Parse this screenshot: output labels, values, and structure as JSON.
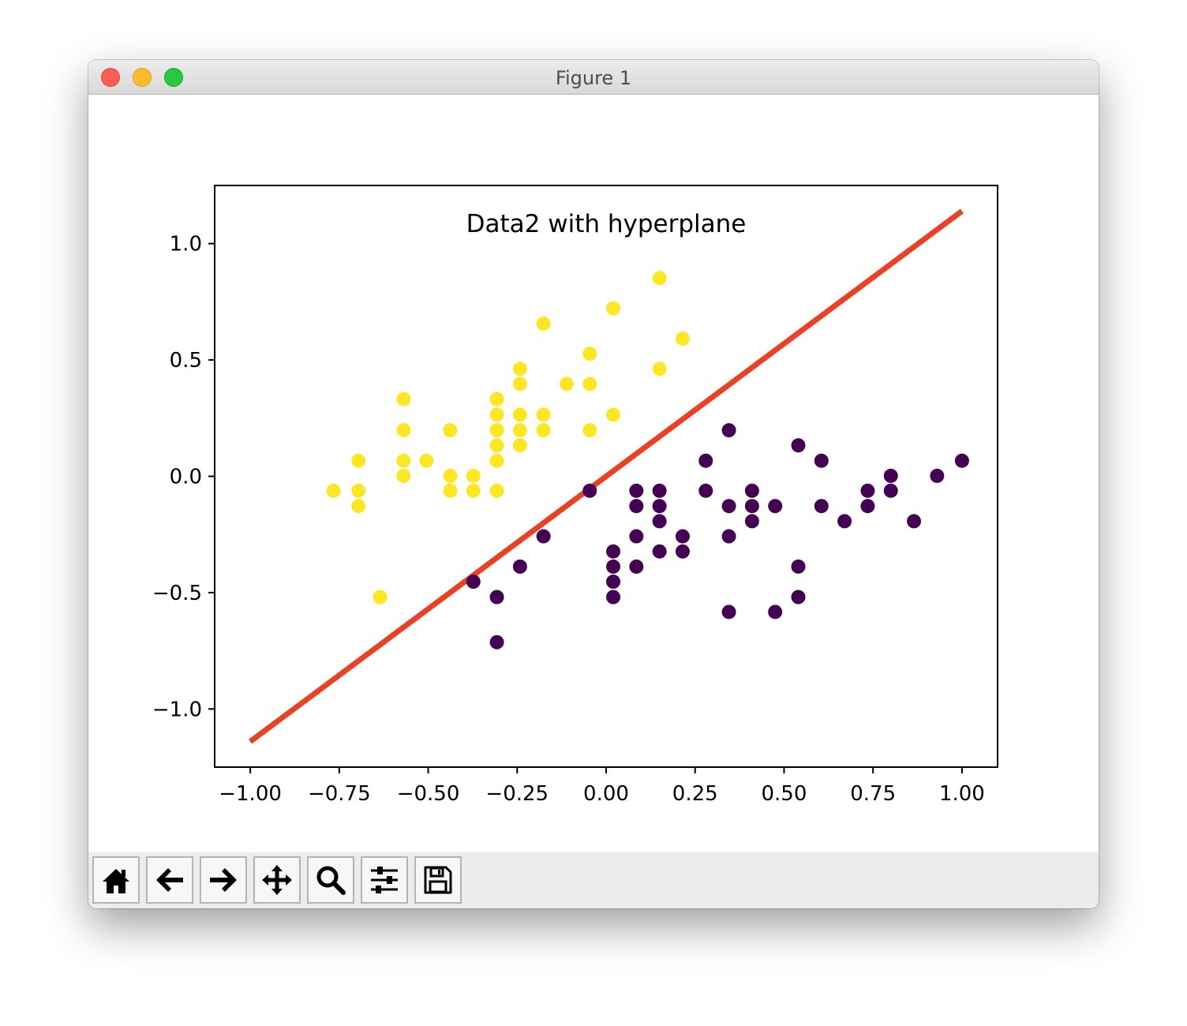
{
  "window": {
    "title": "Figure 1"
  },
  "toolbar": {
    "buttons": [
      {
        "name": "home-button",
        "icon": "home-icon",
        "tooltip": "Reset original view"
      },
      {
        "name": "back-button",
        "icon": "arrow-left-icon",
        "tooltip": "Back to previous view"
      },
      {
        "name": "forward-button",
        "icon": "arrow-right-icon",
        "tooltip": "Forward to next view"
      },
      {
        "name": "pan-button",
        "icon": "move-arrows-icon",
        "tooltip": "Pan axes"
      },
      {
        "name": "zoom-button",
        "icon": "magnifier-icon",
        "tooltip": "Zoom to rectangle"
      },
      {
        "name": "configure-subplots-button",
        "icon": "sliders-icon",
        "tooltip": "Configure subplots"
      },
      {
        "name": "save-button",
        "icon": "floppy-disk-icon",
        "tooltip": "Save the figure"
      }
    ]
  },
  "chart_data": {
    "type": "scatter",
    "title": "Data2 with hyperplane",
    "xlabel": "",
    "ylabel": "",
    "xlim": [
      -1.1,
      1.1
    ],
    "ylim": [
      -1.25,
      1.25
    ],
    "grid": false,
    "x_ticks": [
      -1.0,
      -0.75,
      -0.5,
      -0.25,
      0.0,
      0.25,
      0.5,
      0.75,
      1.0
    ],
    "x_tick_labels": [
      "−1.00",
      "−0.75",
      "−0.50",
      "−0.25",
      "0.00",
      "0.25",
      "0.50",
      "0.75",
      "1.00"
    ],
    "y_ticks": [
      -1.0,
      -0.5,
      0.0,
      0.5,
      1.0
    ],
    "y_tick_labels": [
      "−1.0",
      "−0.5",
      "0.0",
      "0.5",
      "1.0"
    ],
    "colors": {
      "class_0": "#440154",
      "class_1": "#fde725",
      "line": "#ea4125"
    },
    "series": [
      {
        "class": 1,
        "color": "#fde725",
        "points": [
          [
            -0.766,
            -0.062
          ],
          [
            -0.696,
            0.067
          ],
          [
            -0.696,
            -0.062
          ],
          [
            -0.696,
            -0.128
          ],
          [
            -0.635,
            -0.519
          ],
          [
            -0.569,
            0.332
          ],
          [
            -0.569,
            0.198
          ],
          [
            -0.569,
            0.067
          ],
          [
            -0.569,
            0.002
          ],
          [
            -0.505,
            0.067
          ],
          [
            -0.438,
            0.198
          ],
          [
            -0.438,
            0.002
          ],
          [
            -0.438,
            -0.062
          ],
          [
            -0.373,
            0.002
          ],
          [
            -0.373,
            -0.062
          ],
          [
            -0.307,
            0.332
          ],
          [
            -0.307,
            0.265
          ],
          [
            -0.307,
            0.198
          ],
          [
            -0.307,
            0.133
          ],
          [
            -0.307,
            0.067
          ],
          [
            -0.307,
            -0.062
          ],
          [
            -0.242,
            0.462
          ],
          [
            -0.242,
            0.397
          ],
          [
            -0.242,
            0.265
          ],
          [
            -0.242,
            0.198
          ],
          [
            -0.242,
            0.133
          ],
          [
            -0.176,
            0.656
          ],
          [
            -0.176,
            0.265
          ],
          [
            -0.176,
            0.198
          ],
          [
            -0.111,
            0.397
          ],
          [
            -0.046,
            0.527
          ],
          [
            -0.046,
            0.397
          ],
          [
            -0.046,
            0.198
          ],
          [
            0.02,
            0.722
          ],
          [
            0.02,
            0.265
          ],
          [
            0.15,
            0.852
          ],
          [
            0.15,
            0.462
          ],
          [
            0.215,
            0.592
          ]
        ]
      },
      {
        "class": 0,
        "color": "#440154",
        "points": [
          [
            -0.373,
            -0.453
          ],
          [
            -0.307,
            -0.519
          ],
          [
            -0.307,
            -0.713
          ],
          [
            -0.242,
            -0.388
          ],
          [
            -0.176,
            -0.258
          ],
          [
            -0.046,
            -0.062
          ],
          [
            0.02,
            -0.323
          ],
          [
            0.02,
            -0.388
          ],
          [
            0.02,
            -0.453
          ],
          [
            0.02,
            -0.519
          ],
          [
            0.085,
            -0.062
          ],
          [
            0.085,
            -0.128
          ],
          [
            0.085,
            -0.258
          ],
          [
            0.085,
            -0.388
          ],
          [
            0.15,
            -0.062
          ],
          [
            0.15,
            -0.128
          ],
          [
            0.15,
            -0.193
          ],
          [
            0.15,
            -0.323
          ],
          [
            0.215,
            -0.258
          ],
          [
            0.215,
            -0.323
          ],
          [
            0.28,
            0.067
          ],
          [
            0.28,
            -0.062
          ],
          [
            0.345,
            0.198
          ],
          [
            0.345,
            -0.128
          ],
          [
            0.345,
            -0.258
          ],
          [
            0.345,
            -0.583
          ],
          [
            0.41,
            -0.062
          ],
          [
            0.41,
            -0.128
          ],
          [
            0.41,
            -0.193
          ],
          [
            0.475,
            -0.128
          ],
          [
            0.475,
            -0.583
          ],
          [
            0.54,
            0.133
          ],
          [
            0.54,
            -0.388
          ],
          [
            0.54,
            -0.519
          ],
          [
            0.605,
            0.067
          ],
          [
            0.605,
            -0.128
          ],
          [
            0.67,
            -0.193
          ],
          [
            0.735,
            -0.062
          ],
          [
            0.735,
            -0.128
          ],
          [
            0.8,
            0.002
          ],
          [
            0.8,
            -0.062
          ],
          [
            0.865,
            -0.193
          ],
          [
            0.93,
            0.002
          ],
          [
            1.0,
            0.067
          ]
        ]
      }
    ],
    "line": {
      "name": "hyperplane",
      "x": [
        -1.0,
        1.0
      ],
      "y": [
        -1.14,
        1.14
      ]
    }
  }
}
